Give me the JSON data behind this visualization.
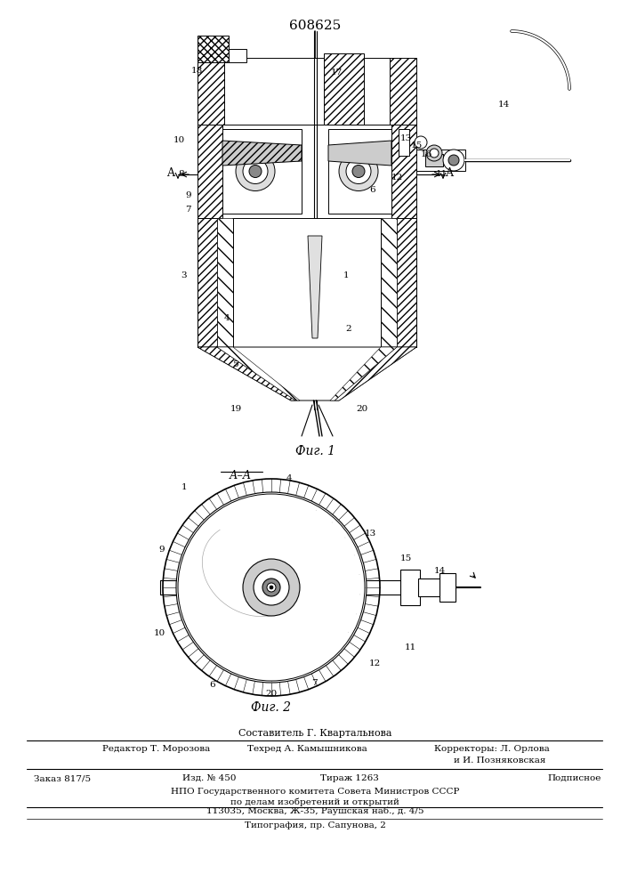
{
  "patent_number": "608625",
  "fig1_caption": "Фиг. 1",
  "fig2_caption": "Фиг. 2",
  "fig2_section": "А–А",
  "composer": "Составитель Г. Квартальнова",
  "editor": "Редактор Т. Морозова",
  "tech": "Техред А. Камышникова",
  "corr1": "Корректоры: Л. Орлова",
  "corr2": "и И. Позняковская",
  "order": "Заказ 817/5",
  "edition": "Изд. № 450",
  "circulation": "Тираж 1263",
  "signed": "Подписное",
  "npo": "НПО Государственного комитета Совета Министров СССР",
  "affairs": "по делам изобретений и открытий",
  "address": "113035, Москва, Ж-35, Раушская наб., д. 4/5",
  "typography": "Типография, пр. Сапунова, 2",
  "bg": "#ffffff",
  "fg": "#000000"
}
